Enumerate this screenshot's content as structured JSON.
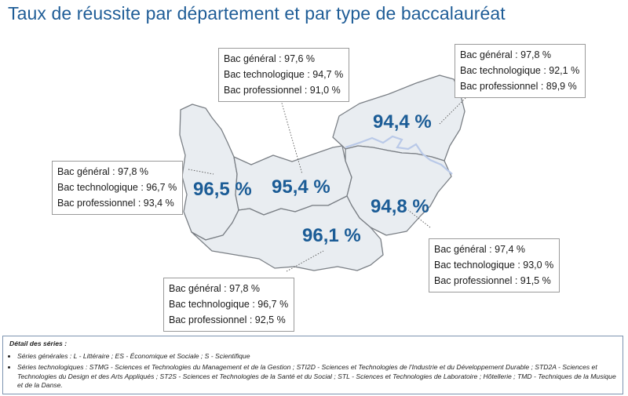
{
  "title": "Taux de réussite par département et par type de baccalauréat",
  "colors": {
    "title": "#1f5d97",
    "region_fill": "#e9edf1",
    "region_stroke": "#7a7f85",
    "river": "#b9c9e8",
    "percent": "#1b5c96"
  },
  "departments": [
    {
      "id": "manche",
      "rate": "96,5 %",
      "details": [
        "Bac général : 97,8 %",
        "Bac technologique : 96,7 %",
        "Bac professionnel : 93,4 %"
      ]
    },
    {
      "id": "calvados",
      "rate": "95,4 %",
      "details": [
        "Bac général : 97,6 %",
        "Bac technologique  : 94,7 %",
        "Bac professionnel : 91,0 %"
      ]
    },
    {
      "id": "seine-maritime",
      "rate": "94,4 %",
      "details": [
        "Bac général : 97,8 %",
        "Bac technologique : 92,1 %",
        "Bac professionnel : 89,9 %"
      ]
    },
    {
      "id": "eure",
      "rate": "94,8 %",
      "details": [
        "Bac général : 97,4 %",
        "Bac technologique : 93,0 %",
        "Bac professionnel : 91,5 %"
      ]
    },
    {
      "id": "orne",
      "rate": "96,1 %",
      "details": [
        "Bac général : 97,8 %",
        "Bac technologique : 96,7 %",
        "Bac professionnel : 92,5 %"
      ]
    }
  ],
  "legend": {
    "title": "Détail des séries :",
    "general": "Séries générales : L - Littéraire ; ES - Économique et Sociale ; S - Scientifique",
    "techno": "Séries technologiques : STMG - Sciences et Technologies du Management et de la Gestion ; STI2D - Sciences et Technologies de l'Industrie et du Développement Durable ; STD2A - Sciences et Technologies du Design et des Arts Appliqués ; ST2S - Sciences et Technologies de la Santé et du Social ; STL - Sciences et Technologies de Laboratoire ; Hôtellerie ; TMD - Techniques de la Musique et de la Danse."
  }
}
